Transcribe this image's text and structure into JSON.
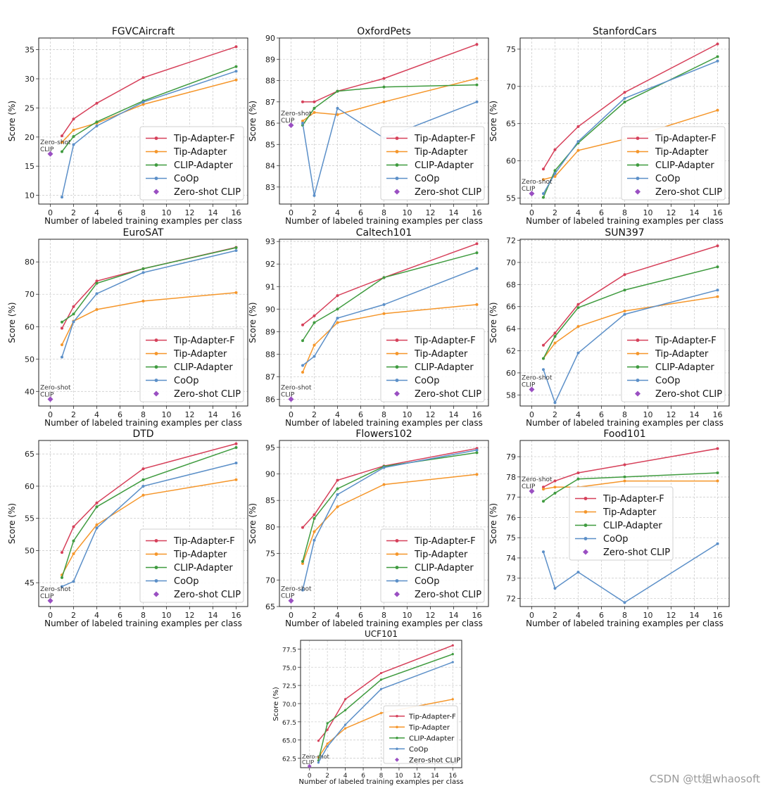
{
  "colors": {
    "tip_f": "#d6405a",
    "tip": "#f5962a",
    "clip": "#3f9b3f",
    "coop": "#5b8fc8",
    "zs": "#9a4fc2"
  },
  "common": {
    "xlabel": "Number of labeled training examples per class",
    "ylabel": "Score (%)",
    "zero_shot_annotation_line1": "Zero-shot",
    "zero_shot_annotation_line2": "CLIP",
    "legend_labels": [
      "Tip-Adapter-F",
      "Tip-Adapter",
      "CLIP-Adapter",
      "CoOp",
      "Zero-shot CLIP"
    ]
  },
  "watermark": "CSDN @tt姐whaosoft",
  "chart_data": [
    {
      "type": "line",
      "title": "FGVCAircraft",
      "shots": [
        1,
        2,
        4,
        8,
        16
      ],
      "xlim": [
        -1,
        17
      ],
      "ylim": [
        8.5,
        37
      ],
      "yticks": [
        10,
        15,
        20,
        25,
        30,
        35
      ],
      "xticks": [
        0,
        2,
        4,
        6,
        8,
        10,
        12,
        14,
        16
      ],
      "zero_shot": 17.1,
      "legend": "bottom-right",
      "series": [
        {
          "name": "Tip-Adapter-F",
          "values": [
            20.2,
            23.1,
            25.8,
            30.2,
            35.5
          ]
        },
        {
          "name": "Tip-Adapter",
          "values": [
            19.1,
            21.2,
            22.4,
            25.6,
            29.8
          ]
        },
        {
          "name": "CLIP-Adapter",
          "values": [
            17.5,
            20.1,
            22.6,
            26.2,
            32.1
          ]
        },
        {
          "name": "CoOp",
          "values": [
            9.7,
            18.7,
            21.9,
            26.0,
            31.3
          ]
        }
      ]
    },
    {
      "type": "line",
      "title": "OxfordPets",
      "shots": [
        1,
        2,
        4,
        8,
        16
      ],
      "xlim": [
        -1,
        17
      ],
      "ylim": [
        82.2,
        90
      ],
      "yticks": [
        83,
        84,
        85,
        86,
        87,
        88,
        89,
        90
      ],
      "xticks": [
        0,
        2,
        4,
        6,
        8,
        10,
        12,
        14,
        16
      ],
      "zero_shot": 85.9,
      "legend": "bottom-right",
      "series": [
        {
          "name": "Tip-Adapter-F",
          "values": [
            87.0,
            87.0,
            87.5,
            88.1,
            89.7
          ]
        },
        {
          "name": "Tip-Adapter",
          "values": [
            86.1,
            86.5,
            86.4,
            87.0,
            88.1
          ]
        },
        {
          "name": "CLIP-Adapter",
          "values": [
            85.9,
            86.7,
            87.5,
            87.7,
            87.8
          ]
        },
        {
          "name": "CoOp",
          "values": [
            86.0,
            82.6,
            86.7,
            85.3,
            87.0
          ]
        }
      ]
    },
    {
      "type": "line",
      "title": "StanfordCars",
      "shots": [
        1,
        2,
        4,
        8,
        16
      ],
      "xlim": [
        -1,
        17
      ],
      "ylim": [
        54.2,
        76.5
      ],
      "yticks": [
        55,
        60,
        65,
        70,
        75
      ],
      "xticks": [
        0,
        2,
        4,
        6,
        8,
        10,
        12,
        14,
        16
      ],
      "zero_shot": 55.6,
      "legend": "bottom-right",
      "series": [
        {
          "name": "Tip-Adapter-F",
          "values": [
            58.9,
            61.5,
            64.6,
            69.2,
            75.7
          ]
        },
        {
          "name": "Tip-Adapter",
          "values": [
            57.5,
            57.9,
            61.4,
            62.9,
            66.8
          ]
        },
        {
          "name": "CLIP-Adapter",
          "values": [
            55.1,
            58.7,
            62.4,
            67.9,
            74.0
          ]
        },
        {
          "name": "CoOp",
          "values": [
            55.6,
            58.3,
            62.6,
            68.4,
            73.4
          ]
        }
      ]
    },
    {
      "type": "line",
      "title": "EuroSAT",
      "shots": [
        1,
        2,
        4,
        8,
        16
      ],
      "xlim": [
        -1,
        17
      ],
      "ylim": [
        35.5,
        87
      ],
      "yticks": [
        40,
        50,
        60,
        70,
        80
      ],
      "xticks": [
        0,
        2,
        4,
        6,
        8,
        10,
        12,
        14,
        16
      ],
      "zero_shot": 37.6,
      "legend": "bottom-right",
      "series": [
        {
          "name": "Tip-Adapter-F",
          "values": [
            59.5,
            66.2,
            74.1,
            77.9,
            84.5
          ]
        },
        {
          "name": "Tip-Adapter",
          "values": [
            54.4,
            61.7,
            65.3,
            67.9,
            70.5
          ]
        },
        {
          "name": "CLIP-Adapter",
          "values": [
            61.4,
            63.9,
            73.4,
            77.9,
            84.4
          ]
        },
        {
          "name": "CoOp",
          "values": [
            50.6,
            61.5,
            70.2,
            76.7,
            83.5
          ]
        }
      ]
    },
    {
      "type": "line",
      "title": "Caltech101",
      "shots": [
        1,
        2,
        4,
        8,
        16
      ],
      "xlim": [
        -1,
        17
      ],
      "ylim": [
        85.7,
        93.1
      ],
      "yticks": [
        86,
        87,
        88,
        89,
        90,
        91,
        92,
        93
      ],
      "xticks": [
        0,
        2,
        4,
        6,
        8,
        10,
        12,
        14,
        16
      ],
      "zero_shot": 86.0,
      "legend": "bottom-right",
      "series": [
        {
          "name": "Tip-Adapter-F",
          "values": [
            89.3,
            89.7,
            90.6,
            91.4,
            92.9
          ]
        },
        {
          "name": "Tip-Adapter",
          "values": [
            87.2,
            88.4,
            89.4,
            89.8,
            90.2
          ]
        },
        {
          "name": "CLIP-Adapter",
          "values": [
            88.6,
            89.4,
            90.0,
            91.4,
            92.5
          ]
        },
        {
          "name": "CoOp",
          "values": [
            87.5,
            87.9,
            89.6,
            90.2,
            91.8
          ]
        }
      ]
    },
    {
      "type": "line",
      "title": "SUN397",
      "shots": [
        1,
        2,
        4,
        8,
        16
      ],
      "xlim": [
        -1,
        17
      ],
      "ylim": [
        57,
        72.1
      ],
      "yticks": [
        58,
        60,
        62,
        64,
        66,
        68,
        70,
        72
      ],
      "xticks": [
        0,
        2,
        4,
        6,
        8,
        10,
        12,
        14,
        16
      ],
      "zero_shot": 58.5,
      "legend": "bottom-right",
      "series": [
        {
          "name": "Tip-Adapter-F",
          "values": [
            62.5,
            63.6,
            66.2,
            68.9,
            71.5
          ]
        },
        {
          "name": "Tip-Adapter",
          "values": [
            61.3,
            62.7,
            64.2,
            65.6,
            66.9
          ]
        },
        {
          "name": "CLIP-Adapter",
          "values": [
            61.3,
            63.3,
            65.9,
            67.5,
            69.6
          ]
        },
        {
          "name": "CoOp",
          "values": [
            60.3,
            57.3,
            61.8,
            65.3,
            67.5
          ]
        }
      ]
    },
    {
      "type": "line",
      "title": "DTD",
      "shots": [
        1,
        2,
        4,
        8,
        16
      ],
      "xlim": [
        -1,
        17
      ],
      "ylim": [
        41.3,
        67.1
      ],
      "yticks": [
        45,
        50,
        55,
        60,
        65
      ],
      "xticks": [
        0,
        2,
        4,
        6,
        8,
        10,
        12,
        14,
        16
      ],
      "zero_shot": 42.2,
      "legend": "bottom-right",
      "series": [
        {
          "name": "Tip-Adapter-F",
          "values": [
            49.7,
            53.7,
            57.4,
            62.7,
            66.6
          ]
        },
        {
          "name": "Tip-Adapter",
          "values": [
            46.2,
            49.5,
            54.0,
            58.6,
            61.0
          ]
        },
        {
          "name": "CLIP-Adapter",
          "values": [
            45.8,
            51.5,
            56.8,
            61.0,
            66.0
          ]
        },
        {
          "name": "CoOp",
          "values": [
            44.4,
            45.2,
            53.5,
            60.0,
            63.6
          ]
        }
      ]
    },
    {
      "type": "line",
      "title": "Flowers102",
      "shots": [
        1,
        2,
        4,
        8,
        16
      ],
      "xlim": [
        -1,
        17
      ],
      "ylim": [
        65,
        96.3
      ],
      "yticks": [
        65,
        70,
        75,
        80,
        85,
        90,
        95
      ],
      "xticks": [
        0,
        2,
        4,
        6,
        8,
        10,
        12,
        14,
        16
      ],
      "zero_shot": 66.1,
      "legend": "bottom-right",
      "series": [
        {
          "name": "Tip-Adapter-F",
          "values": [
            79.9,
            82.3,
            88.8,
            91.5,
            94.8
          ]
        },
        {
          "name": "Tip-Adapter",
          "values": [
            73.1,
            79.1,
            83.8,
            88.0,
            89.9
          ]
        },
        {
          "name": "CLIP-Adapter",
          "values": [
            73.5,
            81.6,
            87.2,
            91.4,
            94.0
          ]
        },
        {
          "name": "CoOp",
          "values": [
            68.1,
            77.5,
            86.1,
            91.2,
            94.5
          ]
        }
      ]
    },
    {
      "type": "line",
      "title": "Food101",
      "shots": [
        1,
        2,
        4,
        8,
        16
      ],
      "xlim": [
        -1,
        17
      ],
      "ylim": [
        71.6,
        79.8
      ],
      "yticks": [
        72,
        73,
        74,
        75,
        76,
        77,
        78,
        79
      ],
      "xticks": [
        0,
        2,
        4,
        6,
        8,
        10,
        12,
        14,
        16
      ],
      "zero_shot": 77.3,
      "legend": "top-right",
      "series": [
        {
          "name": "Tip-Adapter-F",
          "values": [
            77.5,
            77.8,
            78.2,
            78.6,
            79.4
          ]
        },
        {
          "name": "Tip-Adapter",
          "values": [
            77.4,
            77.5,
            77.5,
            77.8,
            77.8
          ]
        },
        {
          "name": "CLIP-Adapter",
          "values": [
            76.8,
            77.2,
            77.9,
            78.0,
            78.2
          ]
        },
        {
          "name": "CoOp",
          "values": [
            74.3,
            72.5,
            73.3,
            71.8,
            74.7
          ]
        }
      ]
    },
    {
      "type": "line",
      "title": "UCF101",
      "shots": [
        1,
        2,
        4,
        8,
        16
      ],
      "xlim": [
        -1,
        17
      ],
      "ylim": [
        61.2,
        78.7
      ],
      "yticks": [
        62.5,
        65.0,
        67.5,
        70.0,
        72.5,
        75.0,
        77.5
      ],
      "xticks": [
        0,
        2,
        4,
        6,
        8,
        10,
        12,
        14,
        16
      ],
      "zero_shot": 61.4,
      "legend": "bottom-right",
      "series": [
        {
          "name": "Tip-Adapter-F",
          "values": [
            64.9,
            66.4,
            70.6,
            74.2,
            78.0
          ]
        },
        {
          "name": "Tip-Adapter",
          "values": [
            62.6,
            64.5,
            66.6,
            68.7,
            70.6
          ]
        },
        {
          "name": "CLIP-Adapter",
          "values": [
            62.2,
            67.3,
            69.1,
            73.3,
            76.8
          ]
        },
        {
          "name": "CoOp",
          "values": [
            61.9,
            64.1,
            67.1,
            72.0,
            75.7
          ]
        }
      ]
    }
  ]
}
